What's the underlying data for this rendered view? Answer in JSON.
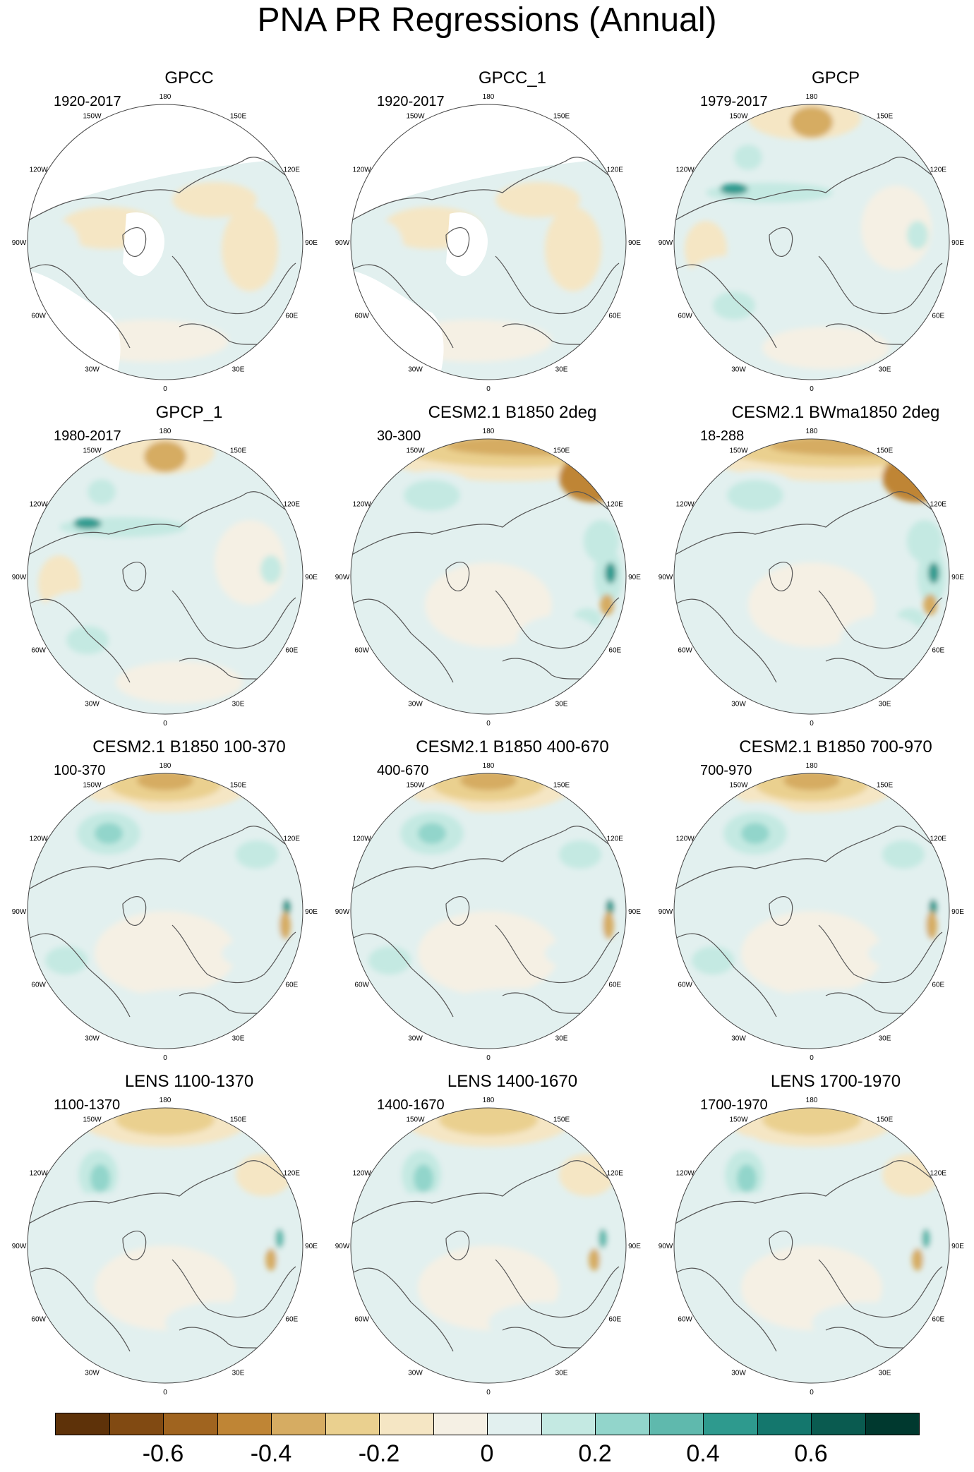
{
  "title": "PNA PR Regressions (Annual)",
  "lon_labels": [
    "180",
    "150E",
    "120E",
    "90E",
    "60E",
    "30E",
    "0",
    "30W",
    "60W",
    "90W",
    "120W",
    "150W"
  ],
  "panels": [
    {
      "title": "GPCC",
      "period": "1920-2017",
      "pattern": "gpcc"
    },
    {
      "title": "GPCC_1",
      "period": "1920-2017",
      "pattern": "gpcc"
    },
    {
      "title": "GPCP",
      "period": "1979-2017",
      "pattern": "gpcp"
    },
    {
      "title": "GPCP_1",
      "period": "1980-2017",
      "pattern": "gpcp"
    },
    {
      "title": "CESM2.1 B1850 2deg",
      "period": "30-300",
      "pattern": "model_strong"
    },
    {
      "title": "CESM2.1 BWma1850 2deg",
      "period": "18-288",
      "pattern": "model_strong"
    },
    {
      "title": "CESM2.1 B1850 100-370",
      "period": "100-370",
      "pattern": "model"
    },
    {
      "title": "CESM2.1 B1850 400-670",
      "period": "400-670",
      "pattern": "model"
    },
    {
      "title": "CESM2.1 B1850 700-970",
      "period": "700-970",
      "pattern": "model"
    },
    {
      "title": "LENS 1100-1370",
      "period": "1100-1370",
      "pattern": "lens"
    },
    {
      "title": "LENS 1400-1670",
      "period": "1400-1670",
      "pattern": "lens"
    },
    {
      "title": "LENS 1700-1970",
      "period": "1700-1970",
      "pattern": "lens"
    }
  ],
  "colorbar": {
    "colors": [
      "#5e3209",
      "#814a12",
      "#a0641f",
      "#bf8535",
      "#d6ac62",
      "#ead08f",
      "#f5e6c4",
      "#f5f0e4",
      "#e2f0ef",
      "#c4e9e2",
      "#92d5cb",
      "#5fb9ad",
      "#2e9a8e",
      "#14776d",
      "#0a5b50",
      "#00392f"
    ],
    "labels": [
      "-0.6",
      "-0.4",
      "-0.2",
      "0",
      "0.2",
      "0.4",
      "0.6"
    ],
    "label_values": [
      -0.6,
      -0.4,
      -0.2,
      0,
      0.2,
      0.4,
      0.6
    ],
    "min": -0.8,
    "max": 0.8
  }
}
